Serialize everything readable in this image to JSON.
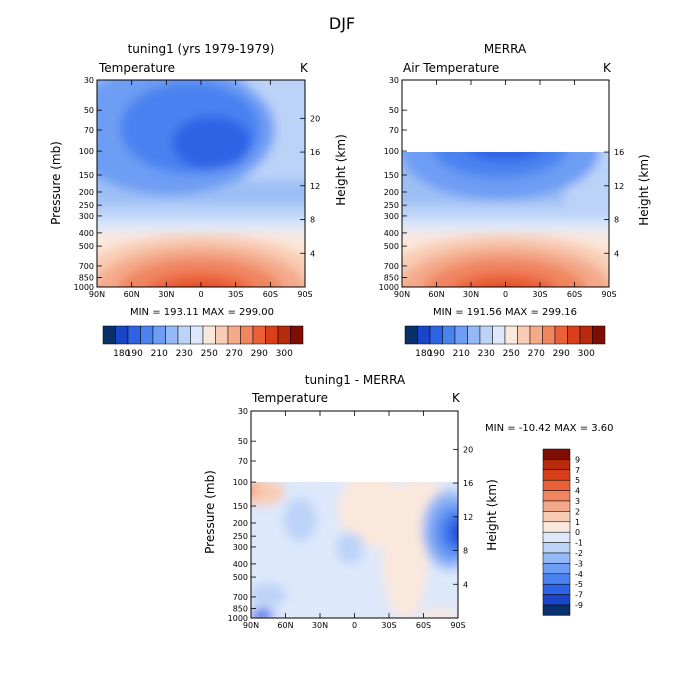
{
  "page_title": "DJF",
  "colorbar_temperature": {
    "labels": [
      "180",
      "190",
      "210",
      "230",
      "250",
      "270",
      "290",
      "300"
    ],
    "colors": [
      "#08306b",
      "#1a45c8",
      "#2f63e6",
      "#4a82f0",
      "#6e9df4",
      "#95b8f6",
      "#bcd3f8",
      "#dde8fb",
      "#fbe8dc",
      "#f8ccb4",
      "#f4a98a",
      "#f08560",
      "#ea6038",
      "#d9401a",
      "#b52b0c",
      "#7f0e02"
    ]
  },
  "colorbar_diff": {
    "labels": [
      "9",
      "7",
      "5",
      "4",
      "3",
      "2",
      "1",
      "0",
      "-1",
      "-2",
      "-3",
      "-4",
      "-5",
      "-7",
      "-9"
    ],
    "colors": [
      "#7f0e02",
      "#b52b0c",
      "#d9401a",
      "#ea6038",
      "#f08560",
      "#f4a98a",
      "#f8ccb4",
      "#fbe8dc",
      "#dde8fb",
      "#bcd3f8",
      "#95b8f6",
      "#6e9df4",
      "#4a82f0",
      "#2f63e6",
      "#1a45c8",
      "#08306b"
    ]
  },
  "chart_data": [
    {
      "type": "heatmap",
      "title": "tuning1 (yrs 1979-1979)",
      "subtitle": "Temperature",
      "units": "K",
      "xlabel": "",
      "ylabel": "Pressure (mb)",
      "y2label": "Height (km)",
      "x_ticks": [
        "90N",
        "60N",
        "30N",
        "0",
        "30S",
        "60S",
        "90S"
      ],
      "y_ticks": [
        "30",
        "50",
        "70",
        "100",
        "150",
        "200",
        "250",
        "300",
        "400",
        "500",
        "700",
        "850",
        "1000"
      ],
      "y2_ticks": [
        "20",
        "16",
        "12",
        "8",
        "4"
      ],
      "stats": "MIN = 193.11   MAX = 299.00",
      "min": 193.11,
      "max": 299.0
    },
    {
      "type": "heatmap",
      "title": "MERRA",
      "subtitle": "Air Temperature",
      "units": "K",
      "xlabel": "",
      "ylabel": "",
      "y2label": "Height (km)",
      "x_ticks": [
        "90N",
        "60N",
        "30N",
        "0",
        "30S",
        "60S",
        "90S"
      ],
      "y_ticks": [
        "30",
        "50",
        "70",
        "100",
        "150",
        "200",
        "250",
        "300",
        "400",
        "500",
        "700",
        "850",
        "1000"
      ],
      "y2_ticks": [
        "16",
        "12",
        "8",
        "4"
      ],
      "stats": "MIN = 191.56   MAX = 299.16",
      "min": 191.56,
      "max": 299.16
    },
    {
      "type": "heatmap",
      "title": "tuning1 - MERRA",
      "subtitle": "Temperature",
      "units": "K",
      "xlabel": "",
      "ylabel": "Pressure (mb)",
      "y2label": "Height (km)",
      "x_ticks": [
        "90N",
        "60N",
        "30N",
        "0",
        "30S",
        "60S",
        "90S"
      ],
      "y_ticks": [
        "30",
        "50",
        "70",
        "100",
        "150",
        "200",
        "250",
        "300",
        "400",
        "500",
        "700",
        "850",
        "1000"
      ],
      "y2_ticks": [
        "20",
        "16",
        "12",
        "8",
        "4"
      ],
      "stats": "MIN =  -10.42   MAX =    3.60",
      "min": -10.42,
      "max": 3.6
    }
  ]
}
